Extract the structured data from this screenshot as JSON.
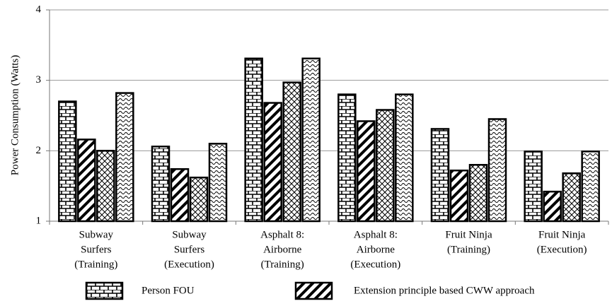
{
  "chart_data": {
    "type": "bar",
    "ylabel": "Power Consumption (Watts)",
    "categories": [
      [
        "Subway",
        "Surfers",
        "(Training)"
      ],
      [
        "Subway",
        "Surfers",
        "(Execution)"
      ],
      [
        "Asphalt 8:",
        "Airborne",
        "(Training)"
      ],
      [
        "Asphalt 8:",
        "Airborne",
        "(Execution)"
      ],
      [
        "Fruit Ninja",
        "(Training)"
      ],
      [
        "Fruit Ninja",
        "(Execution)"
      ]
    ],
    "series": [
      {
        "name": "Person FOU",
        "pattern": "brick",
        "values": [
          2.7,
          2.06,
          3.31,
          2.8,
          2.31,
          1.99
        ]
      },
      {
        "name": "Extension principle based CWW approach",
        "pattern": "stripes",
        "values": [
          2.16,
          1.74,
          2.68,
          2.42,
          1.72,
          1.42
        ]
      },
      {
        "pattern": "cross",
        "values": [
          2.0,
          1.62,
          2.97,
          2.58,
          1.8,
          1.68
        ]
      },
      {
        "pattern": "wave",
        "values": [
          2.82,
          2.1,
          3.31,
          2.8,
          2.45,
          1.99
        ]
      }
    ],
    "ylim": [
      1,
      4
    ],
    "yticks": [
      1,
      2,
      3,
      4
    ],
    "grid": true,
    "legend": "bottom"
  }
}
